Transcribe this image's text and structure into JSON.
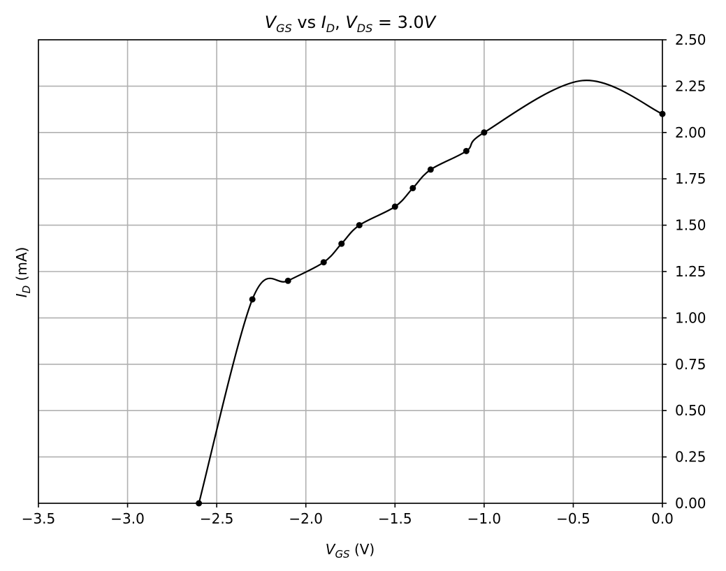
{
  "chart_data": {
    "type": "line",
    "title_parts": {
      "v1": "V",
      "s1": "GS",
      "mid": " vs ",
      "v2": "I",
      "s2": "D",
      "comma": ", ",
      "v3": "V",
      "s3": "DS",
      "eq": " = 3.0",
      "v4": "V"
    },
    "xlabel_parts": {
      "v": "V",
      "sub": "GS",
      "unit": " (V)"
    },
    "ylabel_parts": {
      "v": "I",
      "sub": "D",
      "unit": " (mA)"
    },
    "xlim": [
      -3.5,
      0.0
    ],
    "ylim": [
      0.0,
      2.5
    ],
    "x_ticks": [
      {
        "value": -3.5,
        "label": "−3.5"
      },
      {
        "value": -3.0,
        "label": "−3.0"
      },
      {
        "value": -2.5,
        "label": "−2.5"
      },
      {
        "value": -2.0,
        "label": "−2.0"
      },
      {
        "value": -1.5,
        "label": "−1.5"
      },
      {
        "value": -1.0,
        "label": "−1.0"
      },
      {
        "value": -0.5,
        "label": "−0.5"
      },
      {
        "value": 0.0,
        "label": "0.0"
      }
    ],
    "y_ticks": [
      {
        "value": 0.0,
        "label": "0.00"
      },
      {
        "value": 0.25,
        "label": "0.25"
      },
      {
        "value": 0.5,
        "label": "0.50"
      },
      {
        "value": 0.75,
        "label": "0.75"
      },
      {
        "value": 1.0,
        "label": "1.00"
      },
      {
        "value": 1.25,
        "label": "1.25"
      },
      {
        "value": 1.5,
        "label": "1.50"
      },
      {
        "value": 1.75,
        "label": "1.75"
      },
      {
        "value": 2.0,
        "label": "2.00"
      },
      {
        "value": 2.25,
        "label": "2.25"
      },
      {
        "value": 2.5,
        "label": "2.50"
      }
    ],
    "y_axis_side": "right",
    "grid": true,
    "points": [
      {
        "x": -2.6,
        "y": 0.0
      },
      {
        "x": -2.3,
        "y": 1.1
      },
      {
        "x": -2.1,
        "y": 1.2
      },
      {
        "x": -1.9,
        "y": 1.3
      },
      {
        "x": -1.8,
        "y": 1.4
      },
      {
        "x": -1.7,
        "y": 1.5
      },
      {
        "x": -1.5,
        "y": 1.6
      },
      {
        "x": -1.4,
        "y": 1.7
      },
      {
        "x": -1.3,
        "y": 1.8
      },
      {
        "x": -1.1,
        "y": 1.9
      },
      {
        "x": -1.0,
        "y": 2.0
      },
      {
        "x": 0.0,
        "y": 2.1
      }
    ],
    "curve_peak": {
      "x": -0.45,
      "y": 2.28
    },
    "line_color": "#000000",
    "marker_color": "#000000",
    "grid_color": "#b0b0b0"
  }
}
